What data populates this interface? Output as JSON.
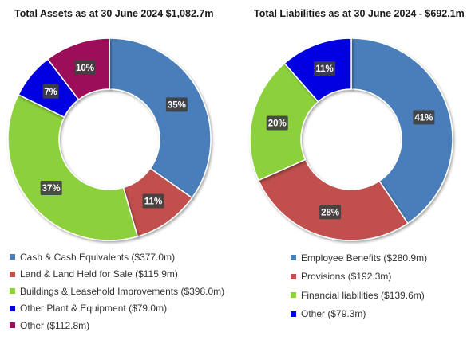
{
  "chart_data": [
    {
      "type": "pie",
      "title": "Total Assets as at 30 June 2024 $1,082.7m",
      "categories": [
        "Cash & Cash Equivalents ($377.0m)",
        "Land & Land Held for Sale ($115.9m)",
        "Buildings & Leasehold Improvements ($398.0m)",
        "Other Plant & Equipment ($79.0m)",
        "Other ($112.8m)"
      ],
      "values": [
        377.0,
        115.9,
        398.0,
        79.0,
        112.8
      ],
      "labels": [
        "35%",
        "11%",
        "37%",
        "7%",
        "10%"
      ],
      "colors": [
        "#4a7ebb",
        "#c0504d",
        "#8cd03a",
        "#0000e0",
        "#9c0c5a"
      ],
      "legend": "bottom"
    },
    {
      "type": "pie",
      "title": "Total Liabilities as at 30 June 2024 - $692.1m",
      "categories": [
        "Employee Benefits ($280.9m)",
        "Provisions ($192.3m)",
        "Financial liabilities ($139.6m)",
        "Other ($79.3m)"
      ],
      "values": [
        280.9,
        192.3,
        139.6,
        79.3
      ],
      "labels": [
        "41%",
        "28%",
        "20%",
        "11%"
      ],
      "colors": [
        "#4a7ebb",
        "#c0504d",
        "#8cd03a",
        "#0000e0"
      ],
      "legend": "bottom"
    }
  ]
}
